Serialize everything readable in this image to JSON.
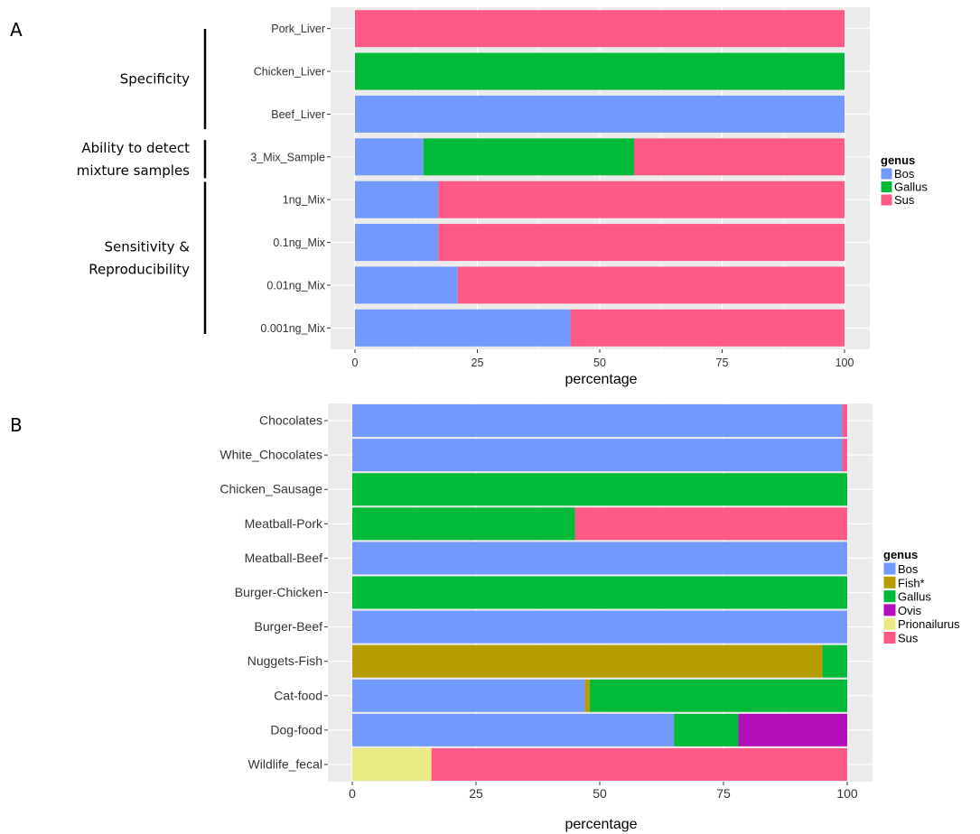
{
  "chart_data": [
    {
      "panel": "A",
      "type": "bar",
      "orientation": "horizontal",
      "stacked": true,
      "categories": [
        "Pork_Liver",
        "Chicken_Liver",
        "Beef_Liver",
        "3_Mix_Sample",
        "1ng_Mix",
        "0.1ng_Mix",
        "0.01ng_Mix",
        "0.001ng_Mix"
      ],
      "series": [
        {
          "name": "Bos",
          "color": "#7199ff",
          "values": [
            0,
            0,
            100,
            14,
            17,
            17,
            21,
            44
          ]
        },
        {
          "name": "Gallus",
          "color": "#00ba38",
          "values": [
            0,
            100,
            0,
            43,
            0,
            0,
            0,
            0
          ]
        },
        {
          "name": "Sus",
          "color": "#ff5a87",
          "values": [
            100,
            0,
            0,
            43,
            83,
            83,
            79,
            56
          ]
        }
      ],
      "xlabel": "percentage",
      "xlim": [
        0,
        100
      ],
      "xticks": [
        "0",
        "25",
        "50",
        "75",
        "100"
      ],
      "legend_title": "genus",
      "legend_position": "right",
      "grid": true,
      "group_labels": [
        {
          "lines": [
            "Specificity"
          ],
          "from": 0,
          "to": 2
        },
        {
          "lines": [
            "Ability to detect",
            "mixture samples"
          ],
          "from": 3,
          "to": 3
        },
        {
          "lines": [
            "Sensitivity &",
            "Reproducibility"
          ],
          "from": 4,
          "to": 7
        }
      ]
    },
    {
      "panel": "B",
      "type": "bar",
      "orientation": "horizontal",
      "stacked": true,
      "categories": [
        "Chocolates",
        "White_Chocolates",
        "Chicken_Sausage",
        "Meatball-Pork",
        "Meatball-Beef",
        "Burger-Chicken",
        "Burger-Beef",
        "Nuggets-Fish",
        "Cat-food",
        "Dog-food",
        "Wildlife_fecal"
      ],
      "series": [
        {
          "name": "Bos",
          "color": "#7199ff",
          "values": [
            99,
            99,
            0,
            0,
            100,
            0,
            100,
            0,
            47,
            65,
            0
          ]
        },
        {
          "name": "Fish*",
          "color": "#b69e00",
          "values": [
            0,
            0,
            0,
            0,
            0,
            0,
            0,
            95,
            1,
            0,
            0
          ]
        },
        {
          "name": "Gallus",
          "color": "#00ba38",
          "values": [
            0,
            0,
            100,
            45,
            0,
            100,
            0,
            5,
            52,
            13,
            0
          ]
        },
        {
          "name": "Ovis",
          "color": "#b20fb9",
          "values": [
            0,
            0,
            0,
            0,
            0,
            0,
            0,
            0,
            0,
            22,
            0
          ]
        },
        {
          "name": "Prionailurus",
          "color": "#eaea82",
          "values": [
            0,
            0,
            0,
            0,
            0,
            0,
            0,
            0,
            0,
            0,
            16
          ]
        },
        {
          "name": "Sus",
          "color": "#ff5a87",
          "values": [
            1,
            1,
            0,
            55,
            0,
            0,
            0,
            0,
            0,
            0,
            84
          ]
        }
      ],
      "xlabel": "percentage",
      "xlim": [
        0,
        100
      ],
      "xticks": [
        "0",
        "25",
        "50",
        "75",
        "100"
      ],
      "legend_title": "genus",
      "legend_position": "right",
      "grid": true
    }
  ],
  "panel_letters": [
    "A",
    "B"
  ],
  "style": {
    "panel_background": "#ebebeb",
    "grid_color": "#ffffff"
  }
}
